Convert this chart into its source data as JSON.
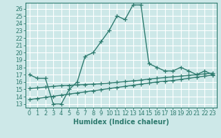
{
  "title": "",
  "xlabel": "Humidex (Indice chaleur)",
  "bg_color": "#cde8e8",
  "grid_color": "#ffffff",
  "line_color": "#2d7a6e",
  "xlim": [
    -0.5,
    23.5
  ],
  "ylim": [
    12.5,
    26.8
  ],
  "yticks": [
    13,
    14,
    15,
    16,
    17,
    18,
    19,
    20,
    21,
    22,
    23,
    24,
    25,
    26
  ],
  "xticks": [
    0,
    1,
    2,
    3,
    4,
    5,
    6,
    7,
    8,
    9,
    10,
    11,
    12,
    13,
    14,
    15,
    16,
    17,
    18,
    19,
    20,
    21,
    22,
    23
  ],
  "x": [
    0,
    1,
    2,
    3,
    4,
    5,
    6,
    7,
    8,
    9,
    10,
    11,
    12,
    13,
    14,
    15,
    16,
    17,
    18,
    19,
    20,
    21,
    22,
    23
  ],
  "y_main": [
    17.0,
    16.5,
    16.5,
    13.0,
    13.0,
    15.0,
    16.0,
    19.5,
    20.0,
    21.5,
    23.0,
    25.0,
    24.5,
    26.5,
    26.5,
    18.5,
    18.0,
    17.5,
    17.5,
    18.0,
    17.5,
    17.0,
    17.5,
    17.0
  ],
  "y_upper": [
    15.1,
    15.2,
    15.3,
    15.4,
    15.5,
    15.55,
    15.6,
    15.65,
    15.7,
    15.75,
    15.85,
    15.95,
    16.05,
    16.15,
    16.25,
    16.4,
    16.5,
    16.6,
    16.7,
    16.8,
    16.9,
    17.0,
    17.1,
    17.2
  ],
  "y_lower": [
    13.6,
    13.75,
    13.9,
    14.05,
    14.2,
    14.35,
    14.5,
    14.65,
    14.8,
    14.95,
    15.1,
    15.25,
    15.4,
    15.55,
    15.7,
    15.85,
    16.0,
    16.1,
    16.2,
    16.35,
    16.5,
    16.65,
    16.8,
    16.95
  ],
  "marker": "+",
  "markersize": 4,
  "linewidth": 1.0,
  "font_size": 6.5
}
